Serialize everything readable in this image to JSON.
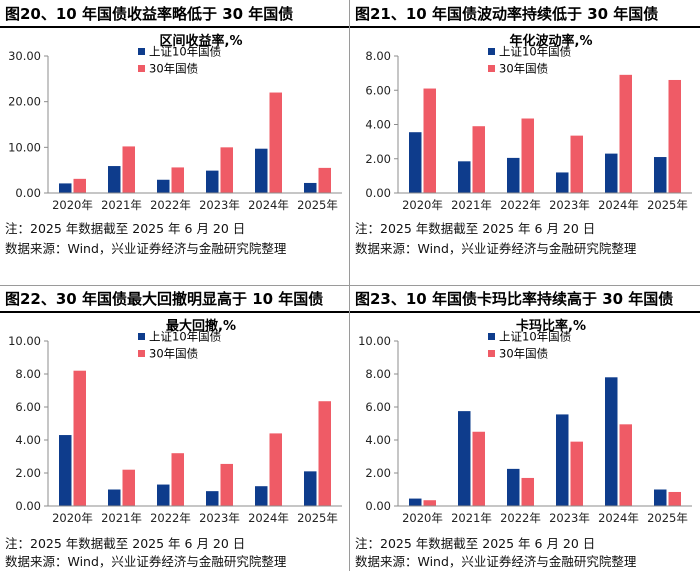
{
  "colors": {
    "series1": "#0e3c8c",
    "series2": "#ef5b66",
    "axis": "#8c8c8c"
  },
  "panels": [
    {
      "title": "图20、10 年国债收益率略低于 30 年国债",
      "note": "注：2025 年数据截至 2025 年 6 月 20 日",
      "source": "数据来源：Wind，兴业证券经济与金融研究院整理"
    },
    {
      "title": "图21、10 年国债波动率持续低于 30 年国债",
      "note": "注：2025 年数据截至 2025 年 6 月 20 日",
      "source": "数据来源：Wind，兴业证券经济与金融研究院整理"
    },
    {
      "title": "图22、30 年国债最大回撤明显高于 10 年国债",
      "note": "注：2025 年数据截至 2025 年 6 月 20 日",
      "source": "数据来源：Wind，兴业证券经济与金融研究院整理"
    },
    {
      "title": "图23、10 年国债卡玛比率持续高于 30 年国债",
      "note": "注：2025 年数据截至 2025 年 6 月 20 日",
      "source": "数据来源：Wind，兴业证券经济与金融研究院整理"
    }
  ],
  "chart_data": [
    {
      "type": "bar",
      "title": "区间收益率,%",
      "categories": [
        "2020年",
        "2021年",
        "2022年",
        "2023年",
        "2024年",
        "2025年"
      ],
      "series": [
        {
          "name": "上证10年国债",
          "values": [
            2.1,
            5.9,
            2.9,
            4.9,
            9.7,
            2.2
          ]
        },
        {
          "name": "30年国债",
          "values": [
            3.1,
            10.2,
            5.6,
            10.0,
            22.0,
            5.5
          ]
        }
      ],
      "ylim": [
        0,
        30
      ],
      "yticks": [
        "0.00",
        "10.00",
        "20.00",
        "30.00"
      ],
      "legend": "top-left"
    },
    {
      "type": "bar",
      "title": "年化波动率,%",
      "categories": [
        "2020年",
        "2021年",
        "2022年",
        "2023年",
        "2024年",
        "2025年"
      ],
      "series": [
        {
          "name": "上证10年国债",
          "values": [
            3.55,
            1.85,
            2.05,
            1.2,
            2.3,
            2.1
          ]
        },
        {
          "name": "30年国债",
          "values": [
            6.1,
            3.9,
            4.35,
            3.35,
            6.9,
            6.6
          ]
        }
      ],
      "ylim": [
        0,
        8
      ],
      "yticks": [
        "0.00",
        "2.00",
        "4.00",
        "6.00",
        "8.00"
      ],
      "legend": "top-left"
    },
    {
      "type": "bar",
      "title": "最大回撤,%",
      "categories": [
        "2020年",
        "2021年",
        "2022年",
        "2023年",
        "2024年",
        "2025年"
      ],
      "series": [
        {
          "name": "上证10年国债",
          "values": [
            4.3,
            1.0,
            1.3,
            0.9,
            1.2,
            2.1
          ]
        },
        {
          "name": "30年国债",
          "values": [
            8.2,
            2.2,
            3.2,
            2.55,
            4.4,
            6.35
          ]
        }
      ],
      "ylim": [
        0,
        10
      ],
      "yticks": [
        "0.00",
        "2.00",
        "4.00",
        "6.00",
        "8.00",
        "10.00"
      ],
      "legend": "top-left"
    },
    {
      "type": "bar",
      "title": "卡玛比率,%",
      "categories": [
        "2020年",
        "2021年",
        "2022年",
        "2023年",
        "2024年",
        "2025年"
      ],
      "series": [
        {
          "name": "上证10年国债",
          "values": [
            0.45,
            5.75,
            2.25,
            5.55,
            7.8,
            1.0
          ]
        },
        {
          "name": "30年国债",
          "values": [
            0.35,
            4.5,
            1.7,
            3.9,
            4.95,
            0.85
          ]
        }
      ],
      "ylim": [
        0,
        10
      ],
      "yticks": [
        "0.00",
        "2.00",
        "4.00",
        "6.00",
        "8.00",
        "10.00"
      ],
      "legend": "top-left"
    }
  ]
}
